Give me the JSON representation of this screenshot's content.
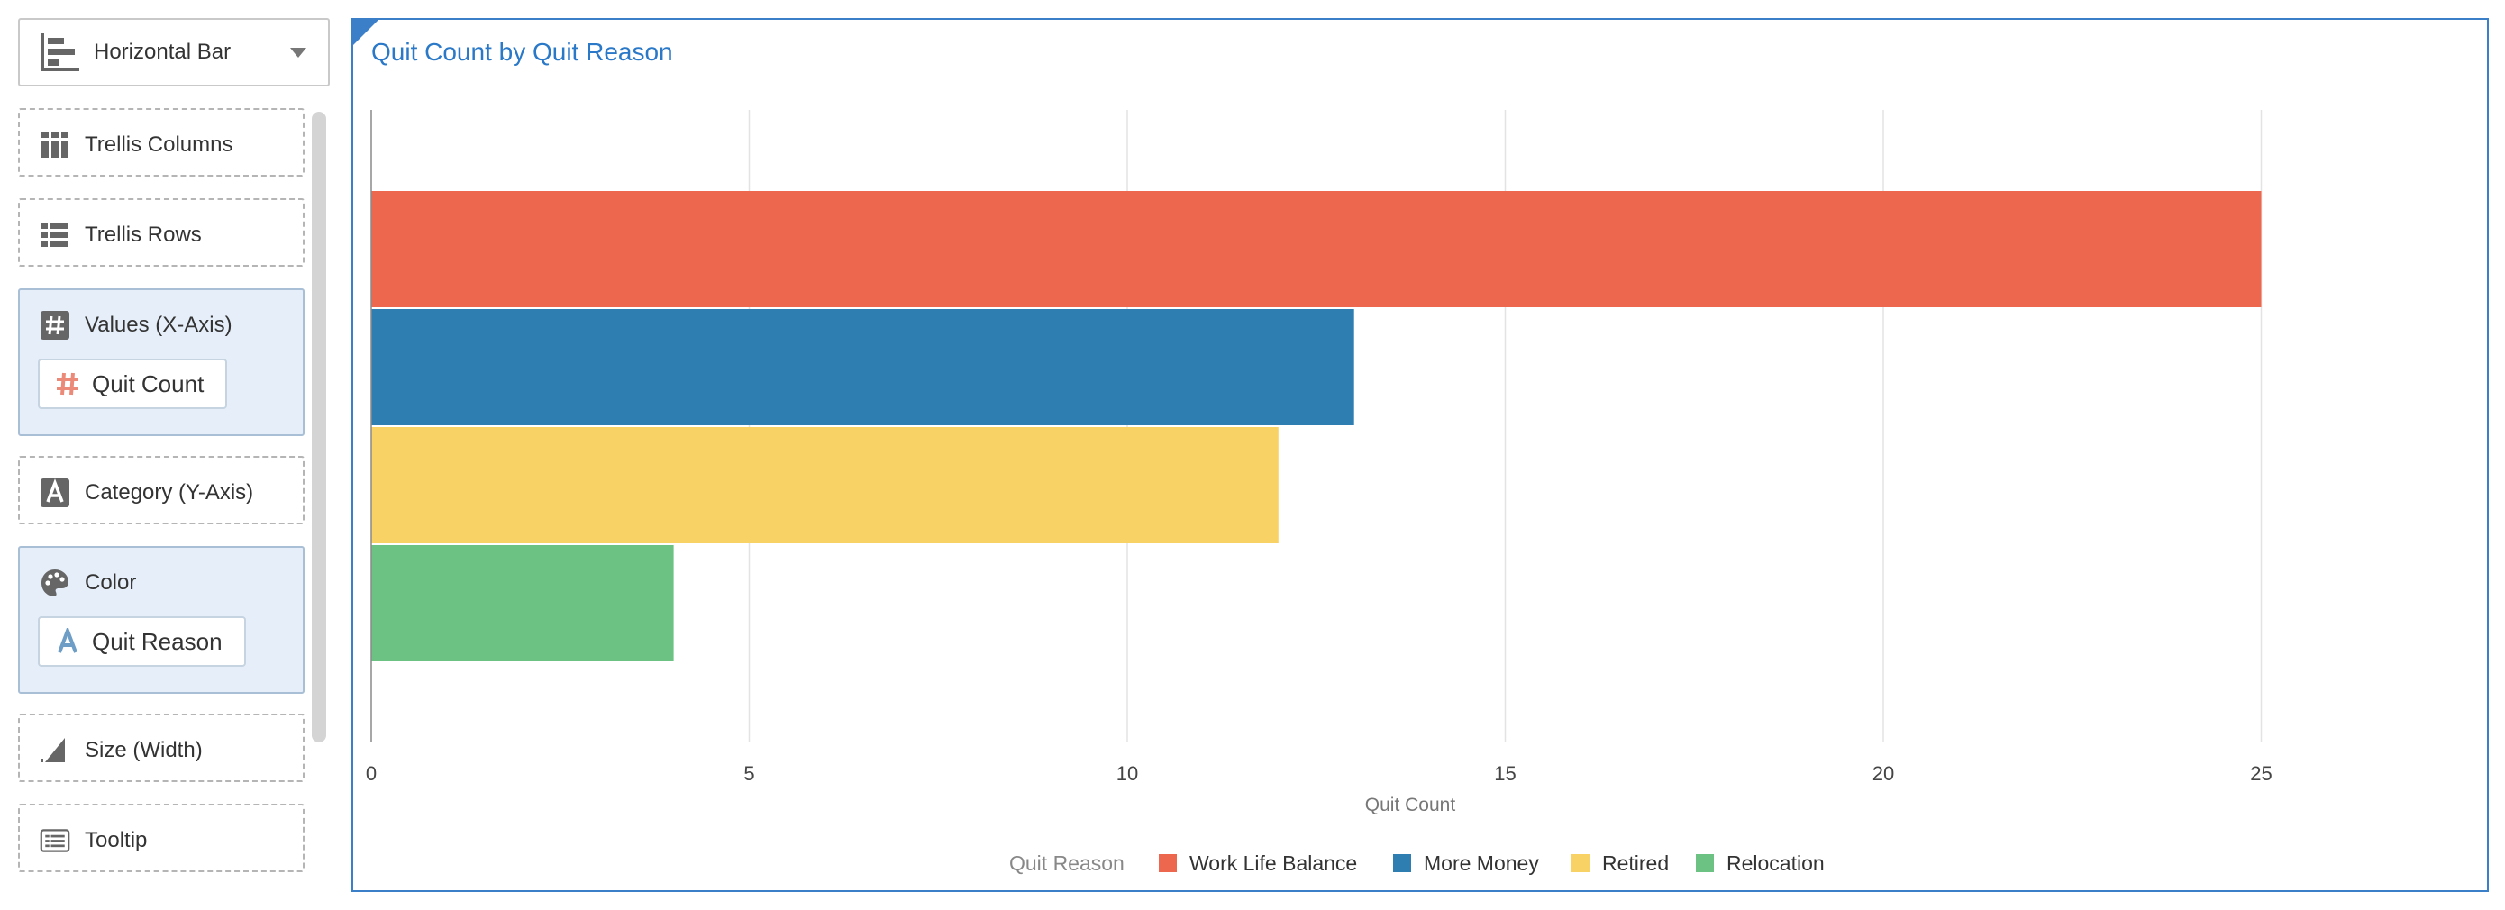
{
  "viz_type": {
    "label": "Horizontal Bar",
    "icon": "horizontal-bar-chart-icon"
  },
  "panel": {
    "trellis_columns": {
      "label": "Trellis Columns",
      "icon": "trellis-columns-icon"
    },
    "trellis_rows": {
      "label": "Trellis Rows",
      "icon": "trellis-rows-icon"
    },
    "values": {
      "label": "Values (X-Axis)",
      "icon": "hash-icon",
      "field": "Quit Count",
      "field_icon": "hash-icon"
    },
    "category": {
      "label": "Category (Y-Axis)",
      "icon": "text-attribute-icon"
    },
    "color": {
      "label": "Color",
      "icon": "palette-icon",
      "field": "Quit Reason",
      "field_icon": "text-attribute-icon"
    },
    "size": {
      "label": "Size (Width)",
      "icon": "size-icon"
    },
    "tooltip": {
      "label": "Tooltip",
      "icon": "tooltip-icon"
    }
  },
  "colors": {
    "accent": "#3a7fc8",
    "title": "#2a78c8",
    "panel_fill": "#e6eff9"
  },
  "chart_data": {
    "type": "bar",
    "orientation": "horizontal",
    "title": "Quit Count by Quit Reason",
    "xlabel": "Quit Count",
    "ylabel": "",
    "xlim": [
      0,
      28
    ],
    "xticks": [
      0,
      5,
      10,
      15,
      20,
      25
    ],
    "grid": true,
    "legend": {
      "title": "Quit Reason",
      "position": "bottom-center"
    },
    "series": [
      {
        "name": "Work Life Balance",
        "value": 25,
        "color": "#ec674d"
      },
      {
        "name": "More Money",
        "value": 13,
        "color": "#2e7eb2"
      },
      {
        "name": "Retired",
        "value": 12,
        "color": "#f8d265"
      },
      {
        "name": "Relocation",
        "value": 4,
        "color": "#6cc282"
      }
    ]
  }
}
